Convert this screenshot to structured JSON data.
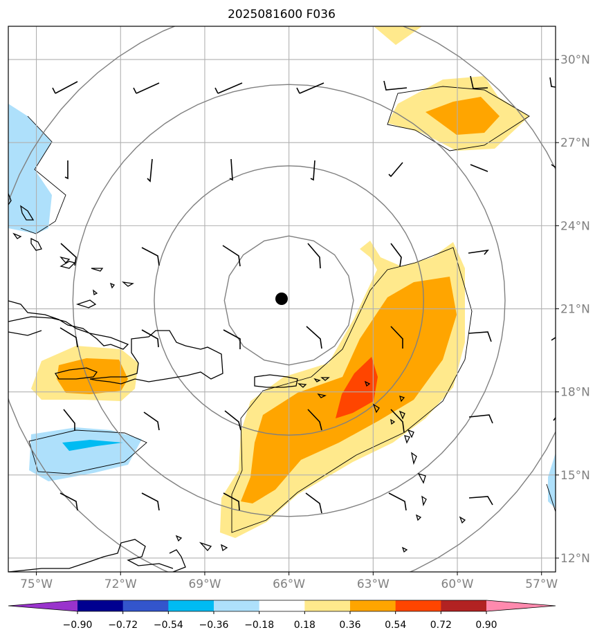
{
  "title": "2025081600 F036",
  "map": {
    "lon_min": -76,
    "lon_max": -56.5,
    "lat_min": 11.5,
    "lat_max": 31.2,
    "lon_ticks": [
      {
        "value": -75,
        "label": "75°W"
      },
      {
        "value": -72,
        "label": "72°W"
      },
      {
        "value": -69,
        "label": "69°W"
      },
      {
        "value": -66,
        "label": "66°W"
      },
      {
        "value": -63,
        "label": "63°W"
      },
      {
        "value": -60,
        "label": "60°W"
      },
      {
        "value": -57,
        "label": "57°W"
      }
    ],
    "lat_ticks": [
      {
        "value": 30,
        "label": "30°N"
      },
      {
        "value": 27,
        "label": "27°N"
      },
      {
        "value": 24,
        "label": "24°N"
      },
      {
        "value": 21,
        "label": "21°N"
      },
      {
        "value": 18,
        "label": "18°N"
      },
      {
        "value": 15,
        "label": "15°N"
      },
      {
        "value": 12,
        "label": "12°N"
      }
    ],
    "storm_center": {
      "lon": -66.0,
      "lat": 21.3
    },
    "range_rings_deg": [
      2.3,
      4.8,
      7.7,
      10.6
    ],
    "colors": {
      "grid": "#b0b0b0",
      "rings": "#808080",
      "coast": "#000000"
    }
  },
  "colorbar": {
    "levels": [
      "−0.90",
      "−0.72",
      "−0.54",
      "−0.36",
      "−0.18",
      "0.18",
      "0.36",
      "0.54",
      "0.72",
      "0.90"
    ],
    "colors": [
      "#9933cc",
      "#000090",
      "#3355cc",
      "#00bbf2",
      "#aee0fb",
      "#ffffff",
      "#ffe98c",
      "#ffa500",
      "#ff4500",
      "#b22222",
      "#ff8aae"
    ]
  }
}
